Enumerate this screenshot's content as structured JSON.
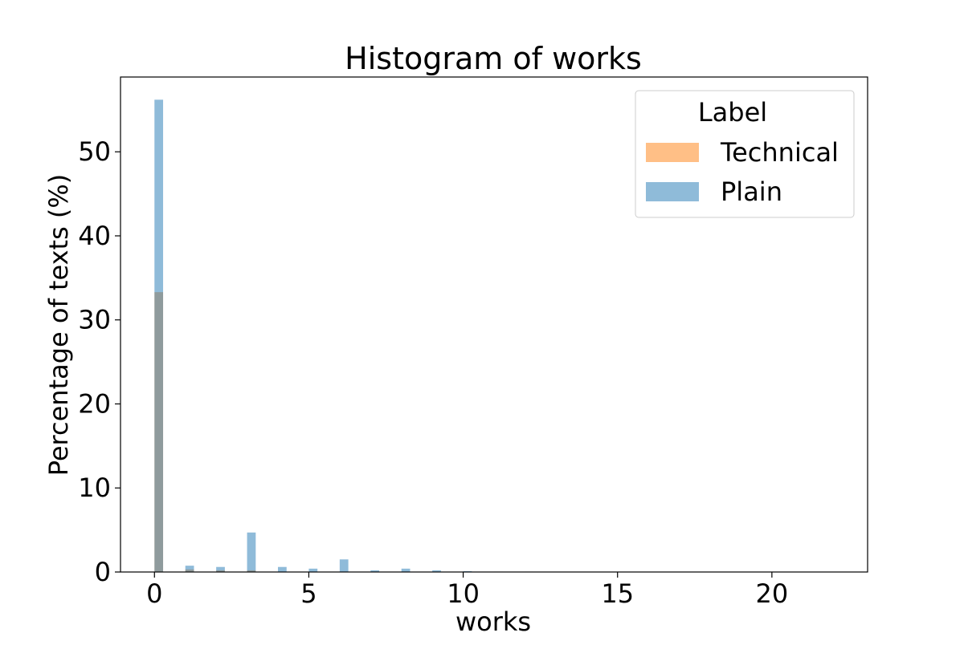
{
  "chart_data": {
    "type": "bar",
    "title": "Histogram of works",
    "xlabel": "works",
    "ylabel": "Percentage of texts (%)",
    "xlim": [
      -1.1,
      23.1
    ],
    "ylim": [
      0,
      58.9
    ],
    "xticks": [
      0,
      5,
      10,
      15,
      20
    ],
    "yticks": [
      0,
      10,
      20,
      30,
      40,
      50
    ],
    "bin_width": 0.28,
    "legend": {
      "title": "Label",
      "position": "top-right",
      "entries": [
        "Technical",
        "Plain"
      ]
    },
    "series": [
      {
        "name": "Technical",
        "color": "#ff7f0e",
        "x": [
          0,
          1,
          2,
          3,
          4,
          5,
          6,
          7,
          8,
          9,
          10,
          11,
          12
        ],
        "values": [
          33.3,
          0.3,
          0.2,
          0.2,
          0.0,
          0.0,
          0.0,
          0.0,
          0.0,
          0.0,
          0.0,
          0.0,
          0.0
        ]
      },
      {
        "name": "Plain",
        "color": "#1f77b4",
        "x": [
          0,
          1,
          2,
          3,
          4,
          5,
          6,
          7,
          8,
          9,
          10,
          11,
          12
        ],
        "values": [
          56.2,
          0.75,
          0.6,
          4.7,
          0.6,
          0.4,
          1.5,
          0.2,
          0.4,
          0.2,
          0.1,
          0.05,
          0.05
        ]
      }
    ]
  }
}
